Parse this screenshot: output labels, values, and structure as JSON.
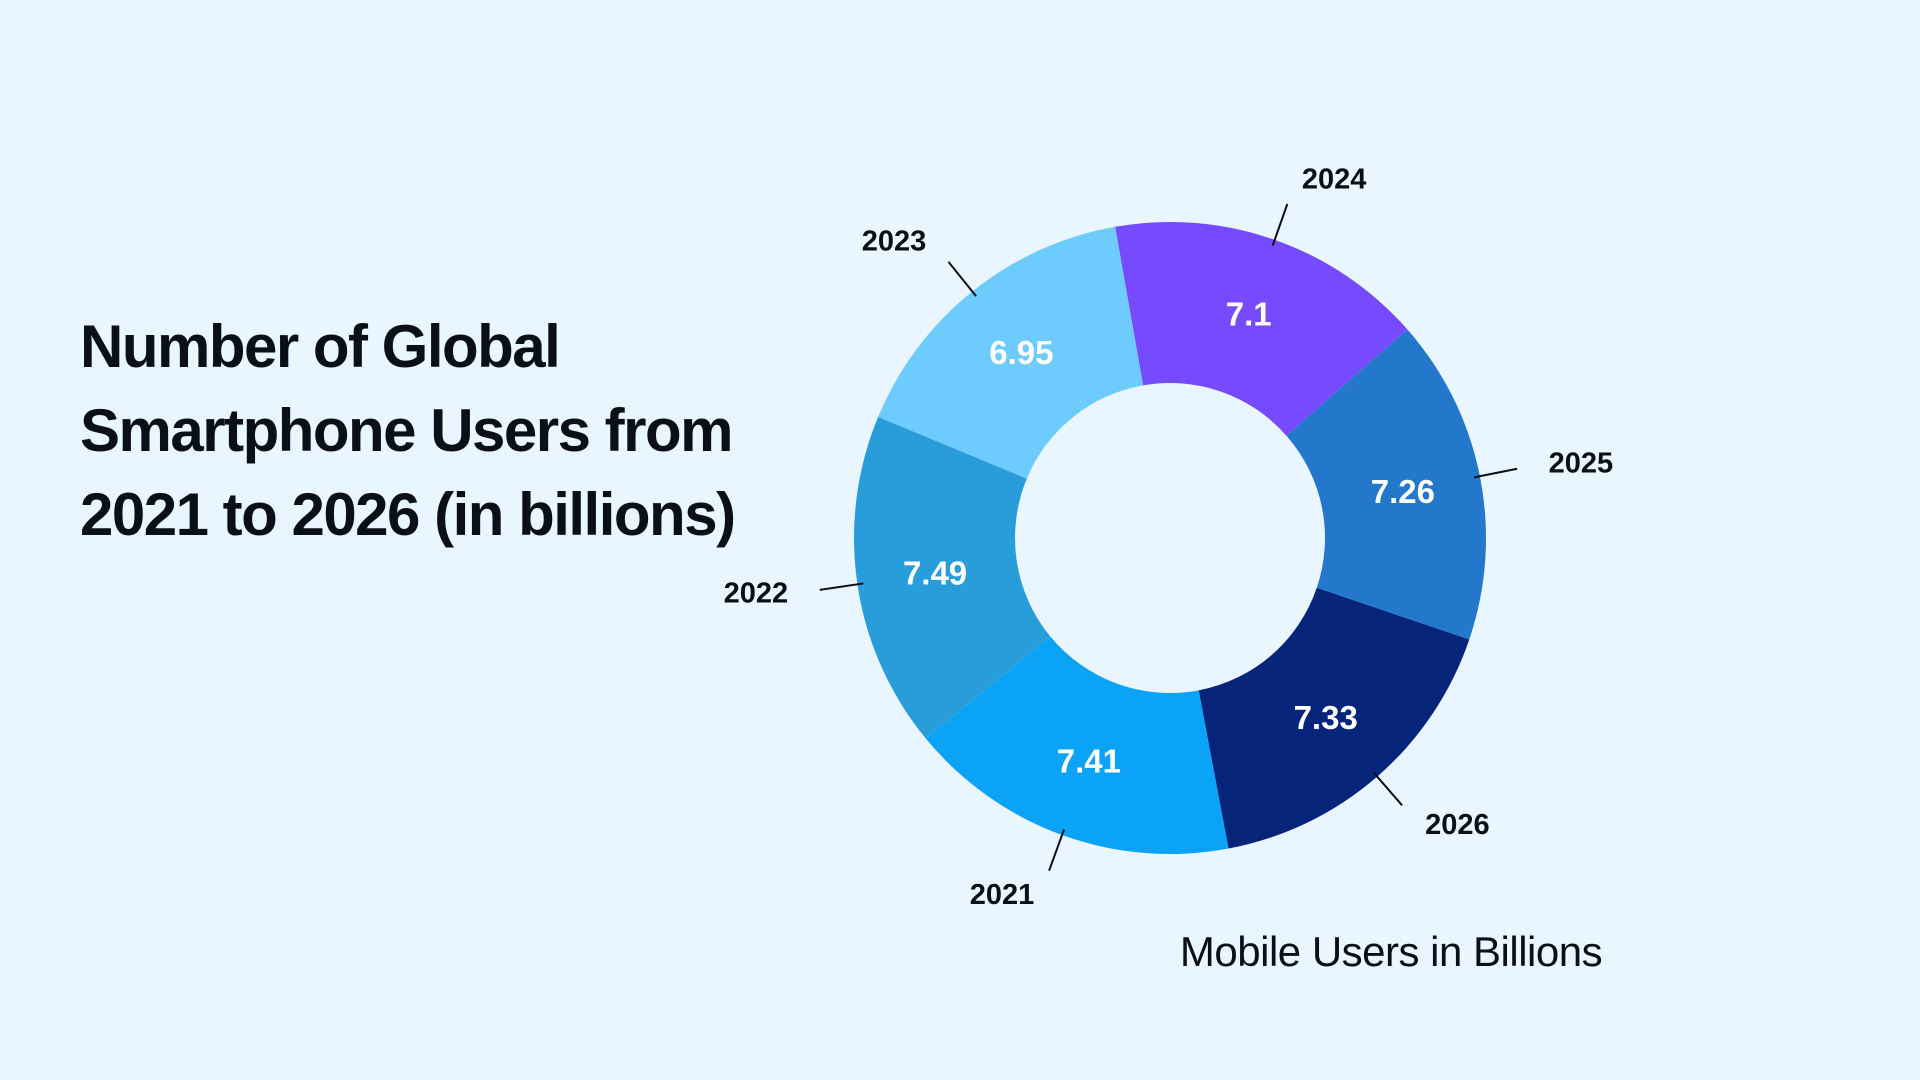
{
  "title": "Number of Global Smartphone Users from 2021 to 2026 (in billions)",
  "chart_data": {
    "type": "pie",
    "subtype": "donut",
    "title": "Number of Global Smartphone Users from 2021 to 2026 (in billions)",
    "caption": "Mobile Users in Billions",
    "unit": "billions",
    "categories": [
      "2021",
      "2022",
      "2023",
      "2024",
      "2025",
      "2026"
    ],
    "values": [
      7.41,
      7.49,
      6.95,
      7.1,
      7.26,
      7.33
    ],
    "value_labels": [
      "7.41",
      "7.49",
      "6.95",
      "7.1",
      "7.26",
      "7.33"
    ],
    "colors": [
      "#0aa3f5",
      "#289dda",
      "#6ecbfe",
      "#764aff",
      "#2378cc",
      "#06247a"
    ],
    "legend": "none"
  }
}
